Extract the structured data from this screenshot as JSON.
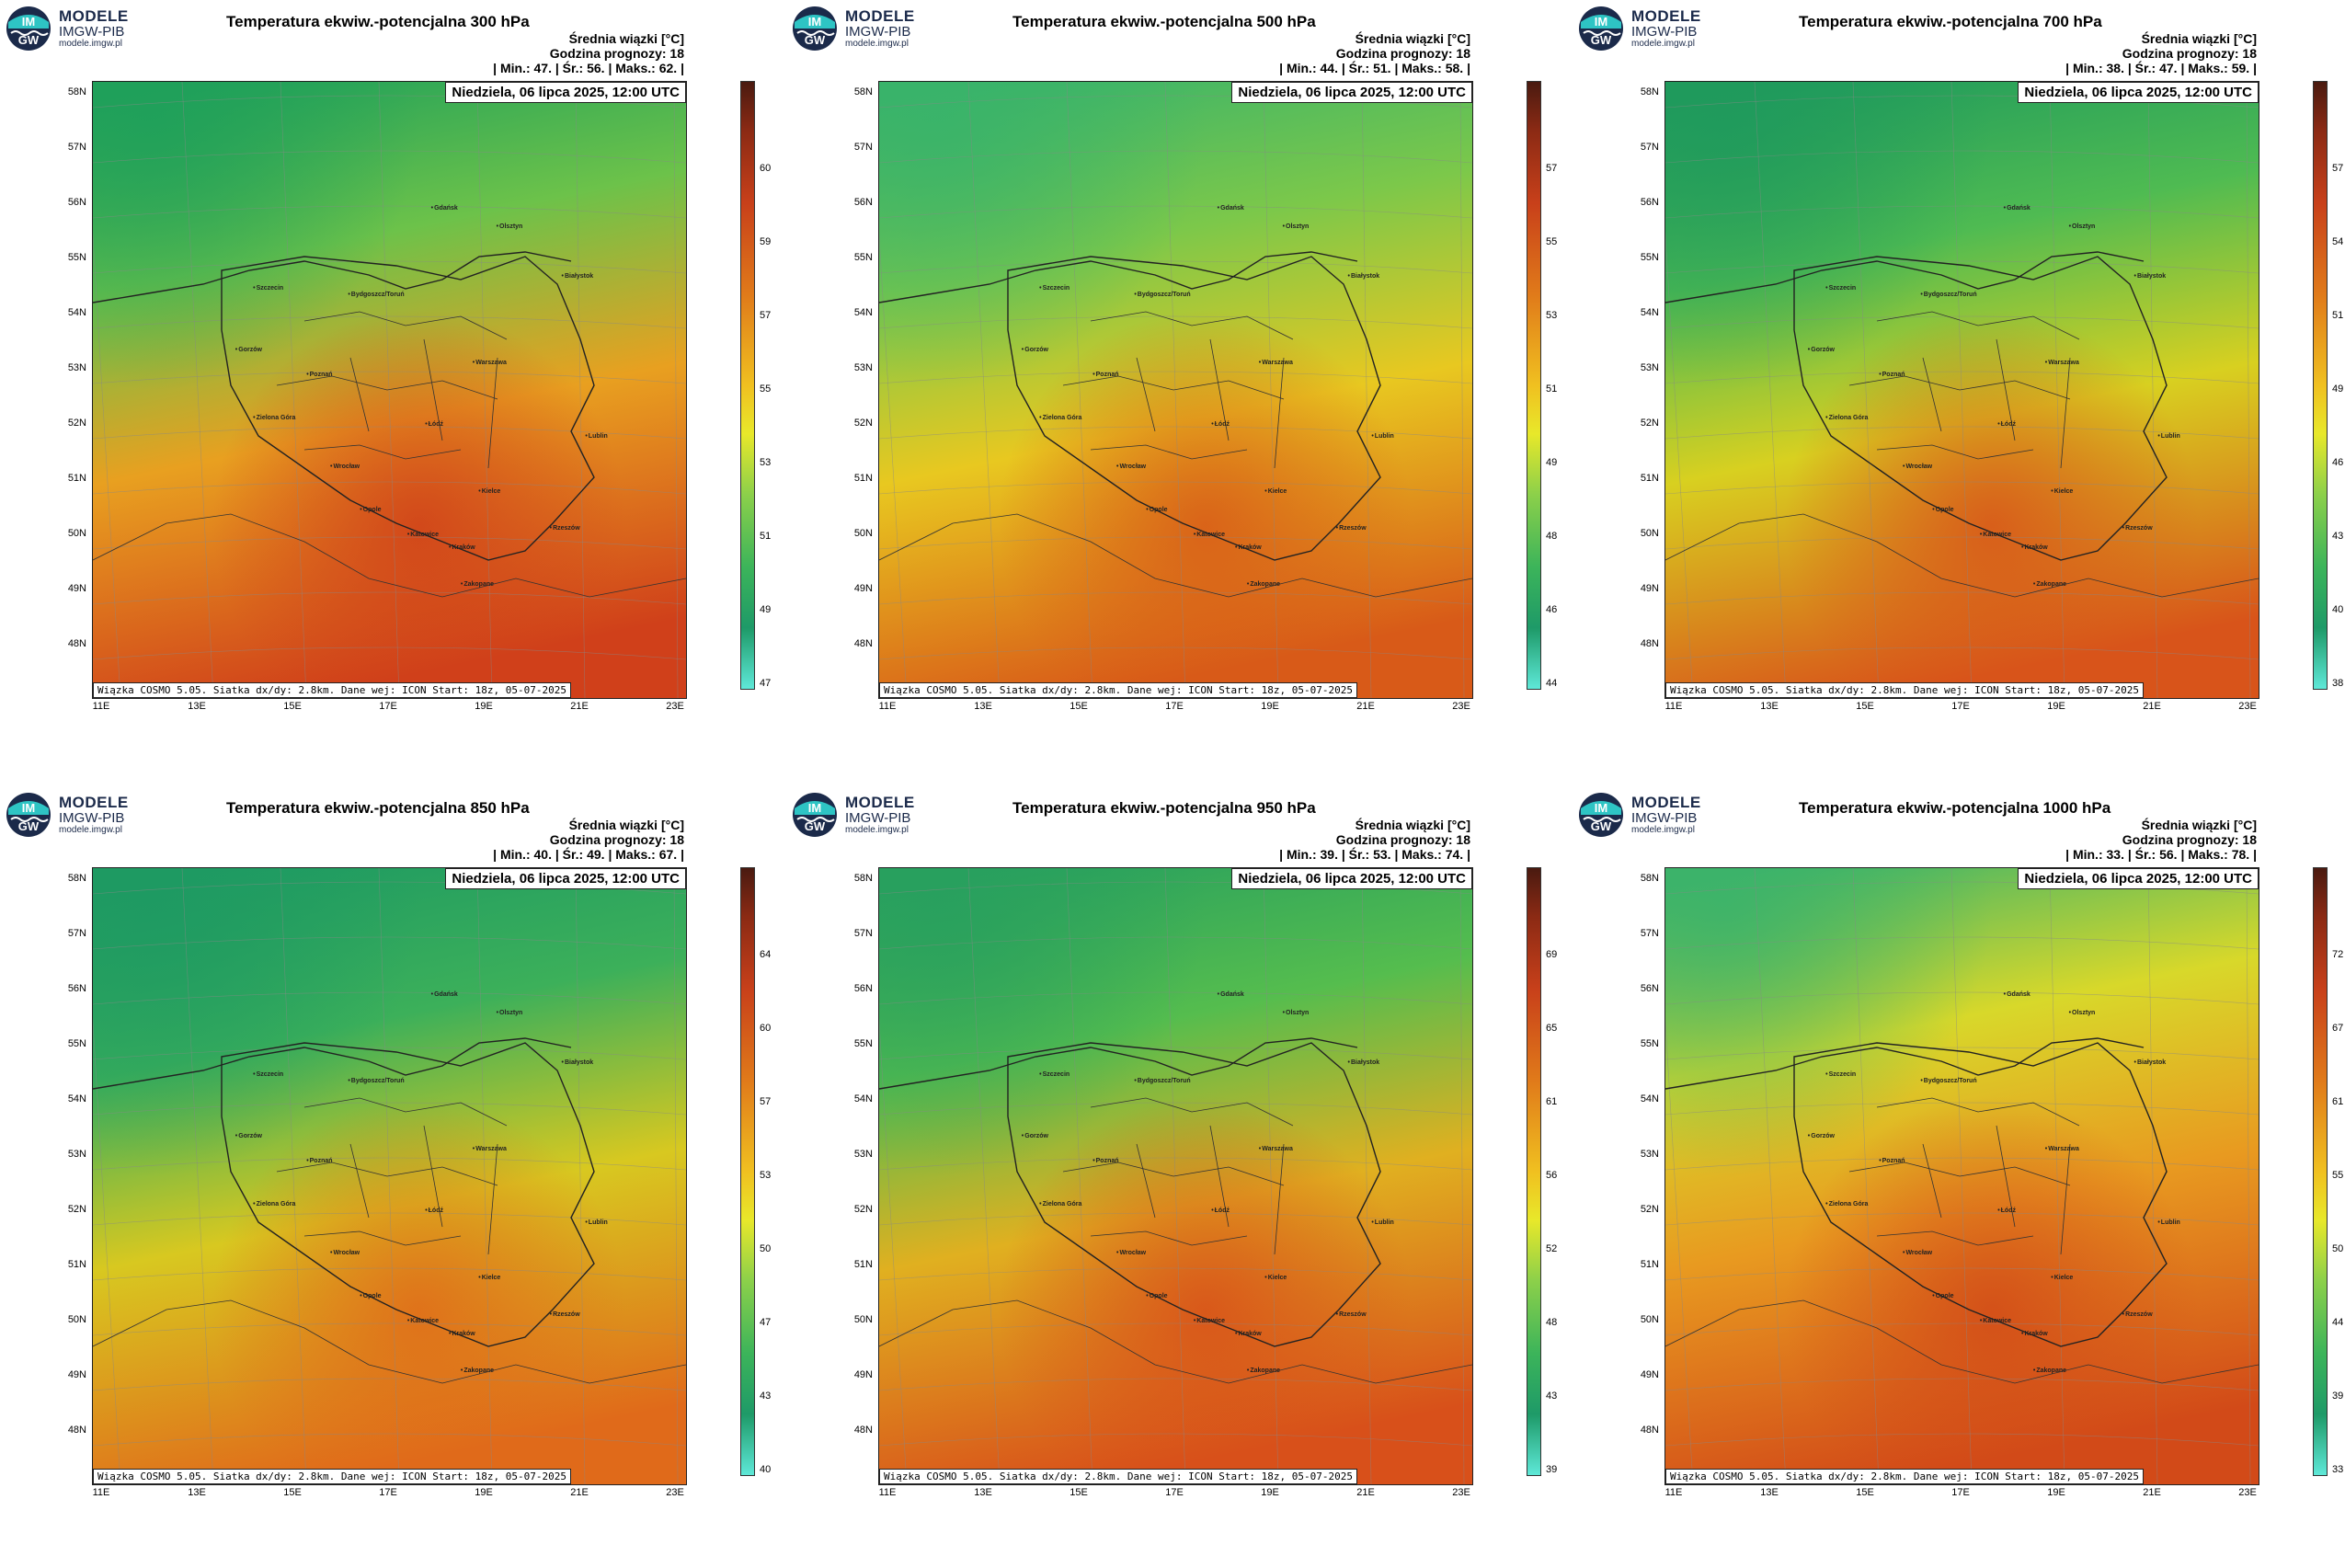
{
  "logo": {
    "line1": "MODELE",
    "line2": "IMGW-PIB",
    "line3": "modele.imgw.pl",
    "mark_top": "IM",
    "mark_bottom": "GW"
  },
  "common": {
    "subtitle1": "Średnia wiązki [°C]",
    "subtitle2": "Godzina prognozy: 18",
    "date": "Niedziela, 06 lipca 2025, 12:00 UTC",
    "credit": "Wiązka COSMO 5.05. Siatka dx/dy: 2.8km. Dane wej: ICON Start: 18z, 05-07-2025",
    "lat_labels": [
      "58N",
      "57N",
      "56N",
      "55N",
      "54N",
      "53N",
      "52N",
      "51N",
      "50N",
      "49N",
      "48N"
    ],
    "lon_labels": [
      "11E",
      "13E",
      "15E",
      "17E",
      "19E",
      "21E",
      "23E"
    ],
    "cities": [
      "Gdańsk",
      "Olsztyn",
      "Szczecin",
      "Bydgoszcz/Toruń",
      "Białystok",
      "Gorzów",
      "Poznań",
      "Warszawa",
      "Zielona Góra",
      "Łódź",
      "Lublin",
      "Wrocław",
      "Opole",
      "Kielce",
      "Katowice",
      "Kraków",
      "Rzeszów",
      "Zakopane"
    ]
  },
  "panels": [
    {
      "title": "Temperatura ekwiw.-potencjalna 300 hPa",
      "stats": "| Min.:    47. | Śr.:    56. | Maks.:    62. |",
      "min": 47,
      "mean": 56,
      "max": 62,
      "ticks": [
        "60",
        "59",
        "57",
        "55",
        "53",
        "51",
        "49",
        "47"
      ],
      "map_style": "warm-red",
      "colors": {
        "nw": "#1fa05a",
        "n": "#6cc24a",
        "c": "#e8a020",
        "s": "#d0401a"
      }
    },
    {
      "title": "Temperatura ekwiw.-potencjalna 500 hPa",
      "stats": "| Min.:    44. | Śr.:    51. | Maks.:    58. |",
      "min": 44,
      "mean": 51,
      "max": 58,
      "ticks": [
        "57",
        "55",
        "53",
        "51",
        "49",
        "48",
        "46",
        "44"
      ],
      "map_style": "green-orange",
      "colors": {
        "nw": "#39b36a",
        "n": "#7cc84a",
        "c": "#e8c820",
        "s": "#d85a18"
      }
    },
    {
      "title": "Temperatura ekwiw.-potencjalna 700 hPa",
      "stats": "| Min.:    38. | Śr.:    47. | Maks.:    59. |",
      "min": 38,
      "mean": 47,
      "max": 59,
      "ticks": [
        "57",
        "54",
        "51",
        "49",
        "46",
        "43",
        "40",
        "38"
      ],
      "map_style": "green-yellow",
      "colors": {
        "nw": "#1f9a5c",
        "n": "#4fbb52",
        "c": "#d8d020",
        "s": "#d8541a"
      }
    },
    {
      "title": "Temperatura ekwiw.-potencjalna 850 hPa",
      "stats": "| Min.:    40. | Śr.:    49. | Maks.:    67. |",
      "min": 40,
      "mean": 49,
      "max": 67,
      "ticks": [
        "64",
        "60",
        "57",
        "53",
        "50",
        "47",
        "43",
        "40"
      ],
      "map_style": "green-orange",
      "colors": {
        "nw": "#1e9a62",
        "n": "#3cb05a",
        "c": "#d8c820",
        "s": "#e06a1a"
      }
    },
    {
      "title": "Temperatura ekwiw.-potencjalna 950 hPa",
      "stats": "| Min.:    39. | Śr.:    53. | Maks.:    74. |",
      "min": 39,
      "mean": 53,
      "max": 74,
      "ticks": [
        "69",
        "65",
        "61",
        "56",
        "52",
        "48",
        "43",
        "39"
      ],
      "map_style": "green-orange",
      "colors": {
        "nw": "#28a05e",
        "n": "#55bd4e",
        "c": "#e0b020",
        "s": "#d8501a"
      }
    },
    {
      "title": "Temperatura ekwiw.-potencjalna 1000 hPa",
      "stats": "| Min.:    33. | Śr.:    56. | Maks.:    78. |",
      "min": 33,
      "mean": 56,
      "max": 78,
      "ticks": [
        "72",
        "67",
        "61",
        "55",
        "50",
        "44",
        "39",
        "33"
      ],
      "map_style": "yellow-orange",
      "colors": {
        "nw": "#3cb36a",
        "n": "#d8d82a",
        "c": "#e89a20",
        "s": "#d24a18"
      }
    }
  ]
}
